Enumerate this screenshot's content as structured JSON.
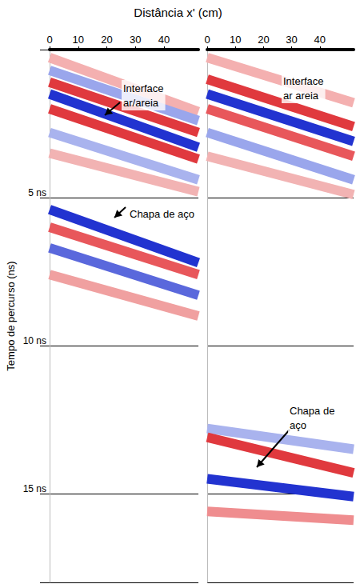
{
  "chart_data": [
    {
      "type": "line",
      "title": "Distância x' (cm)",
      "ylabel": "Tempo de percurso (ns)",
      "xlim": [
        0,
        52
      ],
      "ylim": [
        0,
        18
      ],
      "xticks": [
        0,
        10,
        20,
        30,
        40
      ],
      "yticks": [
        {
          "value": 5,
          "label": "5 ns"
        },
        {
          "value": 10,
          "label": "10 ns"
        },
        {
          "value": 15,
          "label": "15 ns"
        }
      ],
      "grid": true,
      "tick_labels": true,
      "x": [
        0,
        52
      ],
      "series": [
        {
          "color": "#f4b0b0",
          "values": [
            0.27,
            2.1
          ]
        },
        {
          "color": "#9aa6ec",
          "values": [
            0.7,
            2.4
          ]
        },
        {
          "color": "#e0393e",
          "values": [
            1.1,
            2.8
          ]
        },
        {
          "color": "#2233d0",
          "values": [
            1.5,
            3.3
          ]
        },
        {
          "color": "#e0393e",
          "values": [
            2.0,
            3.7
          ]
        },
        {
          "color": "#a9b3ee",
          "values": [
            2.8,
            4.4
          ]
        },
        {
          "color": "#f2b3b3",
          "values": [
            3.5,
            4.8
          ]
        },
        {
          "color": "#2233d0",
          "values": [
            5.4,
            7.2
          ]
        },
        {
          "color": "#e8575b",
          "values": [
            6.0,
            7.6
          ]
        },
        {
          "color": "#5a68dc",
          "values": [
            6.7,
            8.3
          ]
        },
        {
          "color": "#f0a0a0",
          "values": [
            7.6,
            9.0
          ]
        }
      ],
      "annotations": [
        "Interface ar/areia",
        "Chapa de aço"
      ]
    },
    {
      "type": "line",
      "xlim": [
        0,
        52
      ],
      "ylim": [
        0,
        18
      ],
      "xticks": [
        0,
        10,
        20,
        30,
        40
      ],
      "yticks": [
        {
          "value": 5,
          "label": "5 ns"
        },
        {
          "value": 10,
          "label": "10 ns"
        },
        {
          "value": 15,
          "label": "15 ns"
        }
      ],
      "grid": true,
      "tick_labels": "x",
      "x": [
        0,
        52
      ],
      "series": [
        {
          "color": "#f4b0b0",
          "values": [
            0.27,
            1.8
          ]
        },
        {
          "color": "#e0393e",
          "values": [
            1.0,
            2.6
          ]
        },
        {
          "color": "#2233d0",
          "values": [
            1.5,
            3.1
          ]
        },
        {
          "color": "#e8575b",
          "values": [
            2.0,
            3.6
          ]
        },
        {
          "color": "#9aa6ec",
          "values": [
            2.8,
            4.4
          ]
        },
        {
          "color": "#f2b3b3",
          "values": [
            3.6,
            4.9
          ]
        },
        {
          "color": "#a9b3ee",
          "values": [
            12.8,
            13.5
          ]
        },
        {
          "color": "#e0393e",
          "values": [
            13.1,
            14.3
          ]
        },
        {
          "color": "#2233d0",
          "values": [
            14.5,
            15.1
          ]
        },
        {
          "color": "#ef8d8f",
          "values": [
            15.6,
            15.9
          ]
        }
      ],
      "annotations": [
        "Interface ar areia",
        "Chapa de aço"
      ]
    }
  ]
}
